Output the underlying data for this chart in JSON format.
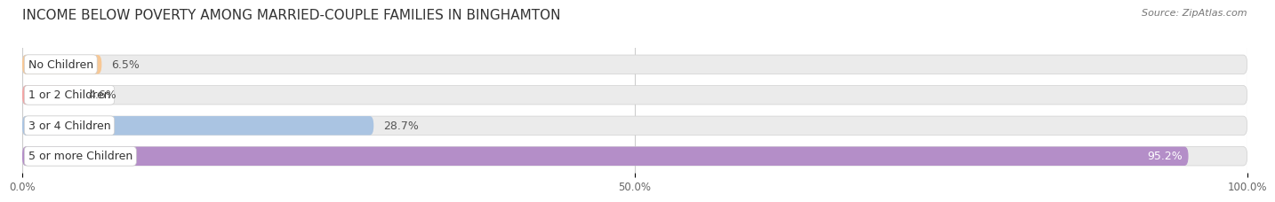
{
  "title": "INCOME BELOW POVERTY AMONG MARRIED-COUPLE FAMILIES IN BINGHAMTON",
  "source": "Source: ZipAtlas.com",
  "categories": [
    "No Children",
    "1 or 2 Children",
    "3 or 4 Children",
    "5 or more Children"
  ],
  "values": [
    6.5,
    4.6,
    28.7,
    95.2
  ],
  "bar_colors": [
    "#f7c896",
    "#f2a5a5",
    "#aac4e2",
    "#b48ec8"
  ],
  "bar_bg_color": "#ebebeb",
  "xlim": [
    0,
    100
  ],
  "xticks": [
    0.0,
    50.0,
    100.0
  ],
  "xtick_labels": [
    "0.0%",
    "50.0%",
    "100.0%"
  ],
  "title_fontsize": 11,
  "bar_height": 0.62,
  "background_color": "#ffffff",
  "grid_color": "#cccccc",
  "label_fontsize": 9,
  "value_fontsize": 9
}
